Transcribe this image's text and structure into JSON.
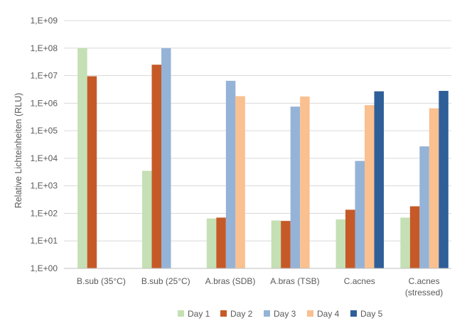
{
  "chart_data": {
    "type": "bar",
    "title": "",
    "xlabel": "",
    "ylabel": "Relative Lichteinheiten (RLU)",
    "y_scale": "log10",
    "ylim": [
      1,
      1000000000
    ],
    "grid": true,
    "legend_position": "bottom",
    "y_tick_labels": [
      "1,E+00",
      "1,E+01",
      "1,E+02",
      "1,E+03",
      "1,E+04",
      "1,E+05",
      "1,E+06",
      "1,E+07",
      "1,E+08",
      "1,E+09"
    ],
    "categories": [
      [
        "B.sub (35°C)"
      ],
      [
        "B.sub (25°C)"
      ],
      [
        "A.bras (SDB)"
      ],
      [
        "A.bras (TSB)"
      ],
      [
        "C.acnes"
      ],
      [
        "C.acnes",
        "(stressed)"
      ]
    ],
    "series": [
      {
        "name": "Day 1",
        "color": "#c5e0b4",
        "values": [
          100000000,
          3500,
          65,
          55,
          60,
          70
        ]
      },
      {
        "name": "Day 2",
        "color": "#c55a28",
        "values": [
          9500000,
          25000000,
          70,
          53,
          135,
          180
        ]
      },
      {
        "name": "Day 3",
        "color": "#95b3d7",
        "values": [
          null,
          100000000,
          6500000,
          750000,
          8000,
          27000
        ]
      },
      {
        "name": "Day 4",
        "color": "#fac090",
        "values": [
          null,
          null,
          1800000,
          1750000,
          850000,
          650000
        ]
      },
      {
        "name": "Day 5",
        "color": "#2f5f98",
        "values": [
          null,
          null,
          null,
          null,
          2700000,
          2800000
        ]
      }
    ]
  }
}
